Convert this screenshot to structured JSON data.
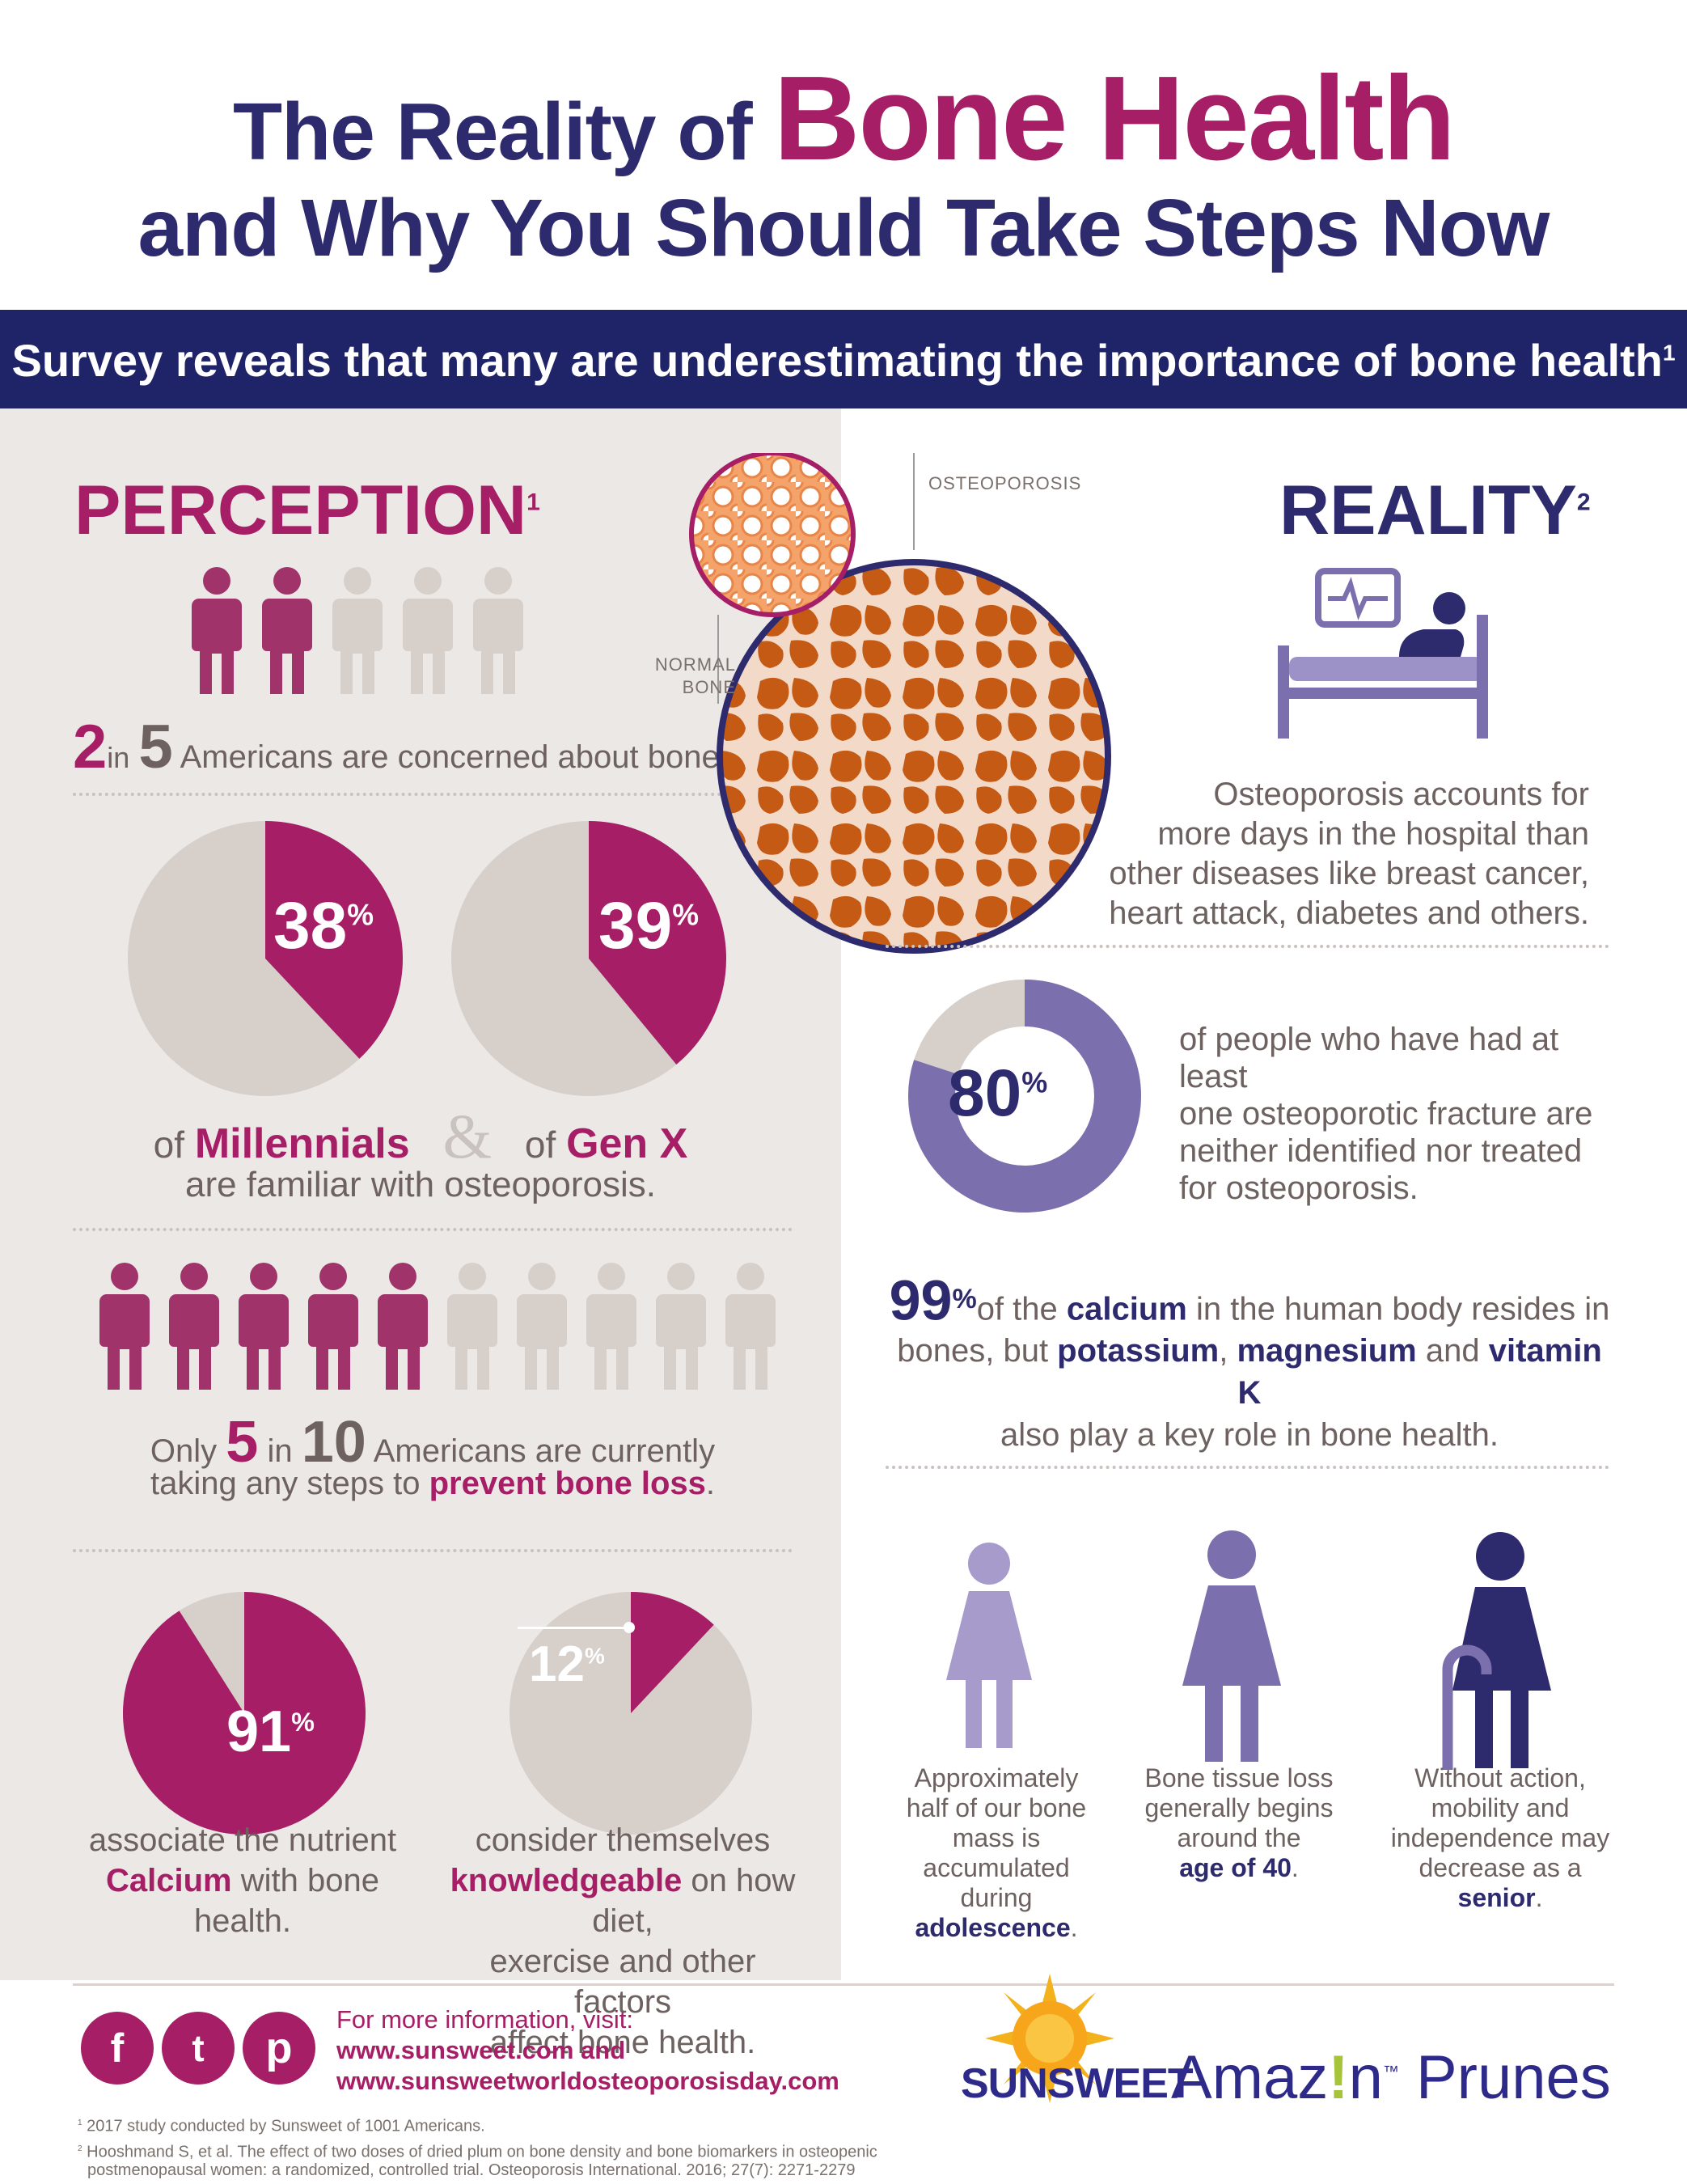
{
  "title": {
    "line1_prefix": "The Reality of ",
    "line1_emphasis": "Bone Health",
    "line2": "and Why You Should Take Steps Now"
  },
  "banner": {
    "text": "Survey reveals that many are underestimating the importance of bone health",
    "note": "1"
  },
  "perception": {
    "heading": "PERCEPTION",
    "note": "1",
    "stat1": {
      "num_a": "2",
      "word_in": "in",
      "num_b": "5",
      "text": "Americans are concerned about bone health.",
      "icons_highlighted": 2,
      "icons_total": 5
    },
    "millennials": {
      "value": 38,
      "label": "38",
      "suffix": "%"
    },
    "genx": {
      "value": 39,
      "label": "39",
      "suffix": "%"
    },
    "familiar": {
      "of1": "of ",
      "group1": "Millennials",
      "amp": "&",
      "of2": "of ",
      "group2": "Gen X",
      "line2": "are familiar with osteoporosis."
    },
    "stat2": {
      "prefix": "Only ",
      "num_a": "5",
      "word_in": "in",
      "num_b": "10",
      "text1": "Americans are currently",
      "text2": "taking any steps to ",
      "emph": "prevent bone loss",
      "end": ".",
      "icons_highlighted": 5,
      "icons_total": 10
    },
    "calcium": {
      "value": 91,
      "label": "91",
      "suffix": "%",
      "line1": "associate the nutrient",
      "emph": "Calcium",
      "line2": " with bone health."
    },
    "knowledge": {
      "value": 12,
      "label": "12",
      "suffix": "%",
      "line1": "consider themselves",
      "emph": "knowledgeable",
      "line1b": " on how diet,",
      "line2": "exercise and other factors",
      "line3": "affect bone health."
    }
  },
  "bone_images": {
    "normal_label_1": "NORMAL",
    "normal_label_2": "BONE",
    "osteo_label": "OSTEOPOROSIS"
  },
  "reality": {
    "heading": "REALITY",
    "note": "2",
    "hospital": {
      "lines": [
        "Osteoporosis accounts for",
        "more days in the hospital than",
        "other diseases like breast cancer,",
        "heart attack, diabetes and others."
      ]
    },
    "fracture": {
      "value": 80,
      "label": "80",
      "suffix": "%",
      "lines": [
        "of people who have had at least",
        "one osteoporotic fracture are",
        "neither identified nor treated",
        "for osteoporosis."
      ]
    },
    "calcium_body": {
      "num": "99",
      "suffix": "%",
      "t1": "of the ",
      "e1": "calcium",
      "t2": " in the human body resides in",
      "t3": "bones, but ",
      "e2": "potassium",
      "t4": ", ",
      "e3": "magnesium",
      "t5": " and ",
      "e4": "vitamin K",
      "t6": "also play a key role in bone health."
    },
    "life_stages": [
      {
        "lines": [
          "Approximately",
          "half of our  bone",
          "mass is",
          "accumulated",
          "during"
        ],
        "emph": "adolescence",
        "end": "."
      },
      {
        "lines": [
          "Bone tissue loss",
          "generally begins",
          "around the"
        ],
        "emph": "age of 40",
        "end": "."
      },
      {
        "lines": [
          "Without action,",
          "mobility and",
          "independence may",
          "decrease as a "
        ],
        "emph": "senior",
        "end": "."
      }
    ]
  },
  "footer": {
    "social": [
      "f",
      "t",
      "p"
    ],
    "info_label": "For more information, visit:",
    "url1": "www.sunsweet.com",
    "and": " and",
    "url2": "www.sunsweetworldosteoporosisday.com",
    "footnote1": "2017 study conducted by Sunsweet of 1001 Americans.",
    "footnote1_num": "1",
    "footnote2_line1": "Hooshmand S, et al. The effect of two doses of dried plum on bone density and bone biomarkers in osteopenic",
    "footnote2_line2": "postmenopausal women: a randomized, controlled trial. Osteoporosis International. 2016; 27(7): 2271-2279",
    "footnote2_num": "2",
    "brand1": "SUNSWEET",
    "brand2_a": "Amaz",
    "brand2_b": "!",
    "brand2_c": "n",
    "brand2_tm": "™",
    "brand2_d": " Prunes"
  },
  "colors": {
    "navy": "#2e2a6e",
    "magenta": "#a61e66",
    "gray": "#d6cfca",
    "purple": "#7b6fad",
    "orange": "#c8621e"
  }
}
